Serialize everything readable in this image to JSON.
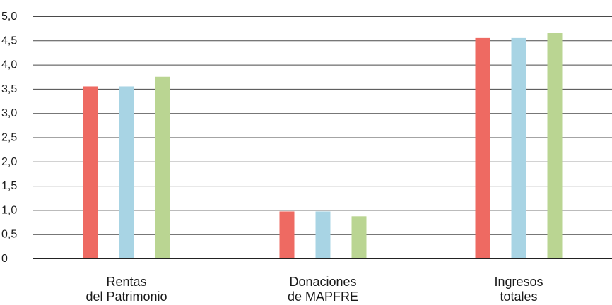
{
  "chart_data": {
    "type": "bar",
    "categories": [
      [
        "Rentas",
        "del Patrimonio"
      ],
      [
        "Donaciones",
        "de MAPFRE"
      ],
      [
        "Ingresos",
        "totales"
      ]
    ],
    "series": [
      {
        "color": "#ee6a62",
        "values": [
          3.55,
          0.97,
          4.55
        ]
      },
      {
        "color": "#a8d4e4",
        "values": [
          3.55,
          0.97,
          4.55
        ]
      },
      {
        "color": "#bad592",
        "values": [
          3.75,
          0.87,
          4.65
        ]
      }
    ],
    "y_ticks": [
      "0",
      "0,5",
      "1,0",
      "1,5",
      "2,0",
      "2,5",
      "3,0",
      "3,5",
      "4,0",
      "4,5",
      "5,0"
    ],
    "ylim": [
      0,
      5
    ],
    "grid": true,
    "legend": "none"
  }
}
